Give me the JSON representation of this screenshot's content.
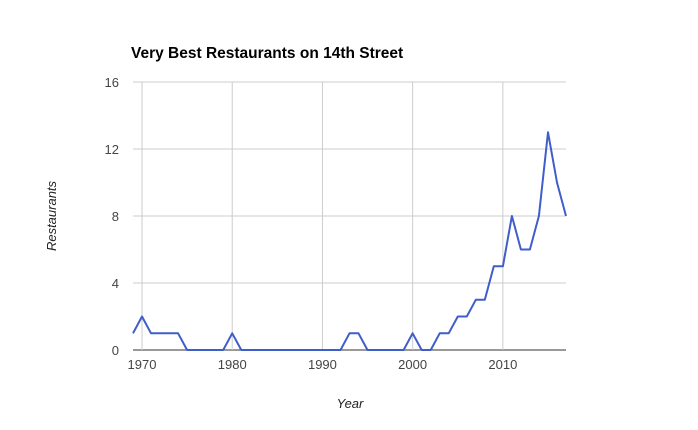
{
  "chart_data": {
    "type": "line",
    "title": "Very Best Restaurants on 14th Street",
    "xlabel": "Year",
    "ylabel": "Restaurants",
    "xlim": [
      1969,
      2017
    ],
    "ylim": [
      0,
      16
    ],
    "x_ticks": [
      1970,
      1980,
      1990,
      2000,
      2010
    ],
    "y_ticks": [
      0,
      4,
      8,
      12,
      16
    ],
    "grid": true,
    "legend": "none",
    "line_color": "#3f5dcc",
    "series": [
      {
        "x": [
          1969,
          1970,
          1971,
          1972,
          1973,
          1974,
          1975,
          1976,
          1977,
          1978,
          1979,
          1980,
          1981,
          1982,
          1983,
          1984,
          1985,
          1986,
          1987,
          1988,
          1989,
          1990,
          1991,
          1992,
          1993,
          1994,
          1995,
          1996,
          1997,
          1998,
          1999,
          2000,
          2001,
          2002,
          2003,
          2004,
          2005,
          2006,
          2007,
          2008,
          2009,
          2010,
          2011,
          2012,
          2013,
          2014,
          2015,
          2016,
          2017
        ],
        "values": [
          1,
          2,
          1,
          1,
          1,
          1,
          0,
          0,
          0,
          0,
          0,
          1,
          0,
          0,
          0,
          0,
          0,
          0,
          0,
          0,
          0,
          0,
          0,
          0,
          1,
          1,
          0,
          0,
          0,
          0,
          0,
          1,
          0,
          0,
          1,
          1,
          2,
          2,
          3,
          3,
          5,
          5,
          8,
          6,
          6,
          8,
          13,
          10,
          8
        ]
      }
    ]
  }
}
